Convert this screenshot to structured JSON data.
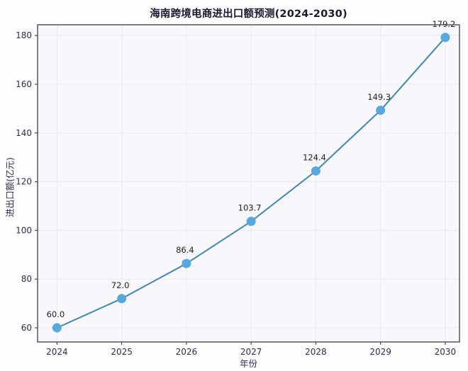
{
  "chart_data": {
    "type": "line",
    "title": "海南跨境电商进出口额预测(2024-2030)",
    "xlabel": "年份",
    "ylabel": "进出口额(亿元)",
    "categories": [
      2024,
      2025,
      2026,
      2027,
      2028,
      2029,
      2030
    ],
    "series": [
      {
        "name": "进出口额预测",
        "values": [
          60.0,
          72.0,
          86.4,
          103.7,
          124.4,
          149.3,
          179.2
        ],
        "point_labels": [
          "60.0",
          "72.0",
          "86.4",
          "103.7",
          "124.4",
          "149.3",
          "179.2"
        ]
      }
    ],
    "yticks": [
      60,
      80,
      100,
      120,
      140,
      160,
      180
    ],
    "xlim": [
      2023.7,
      2030.22
    ],
    "ylim": [
      54.2,
      184.4
    ],
    "grid": true,
    "legend_position": "none",
    "colors": {
      "line": "#3f86b4",
      "marker": "#58a8dd",
      "grid": "#e9e8f1",
      "plot_bg": "#f8f7fb",
      "spine": "#4a4a52",
      "tick_text": "#2e2a52",
      "title_text": "#1b1833",
      "point_label_text": "#242424"
    }
  }
}
